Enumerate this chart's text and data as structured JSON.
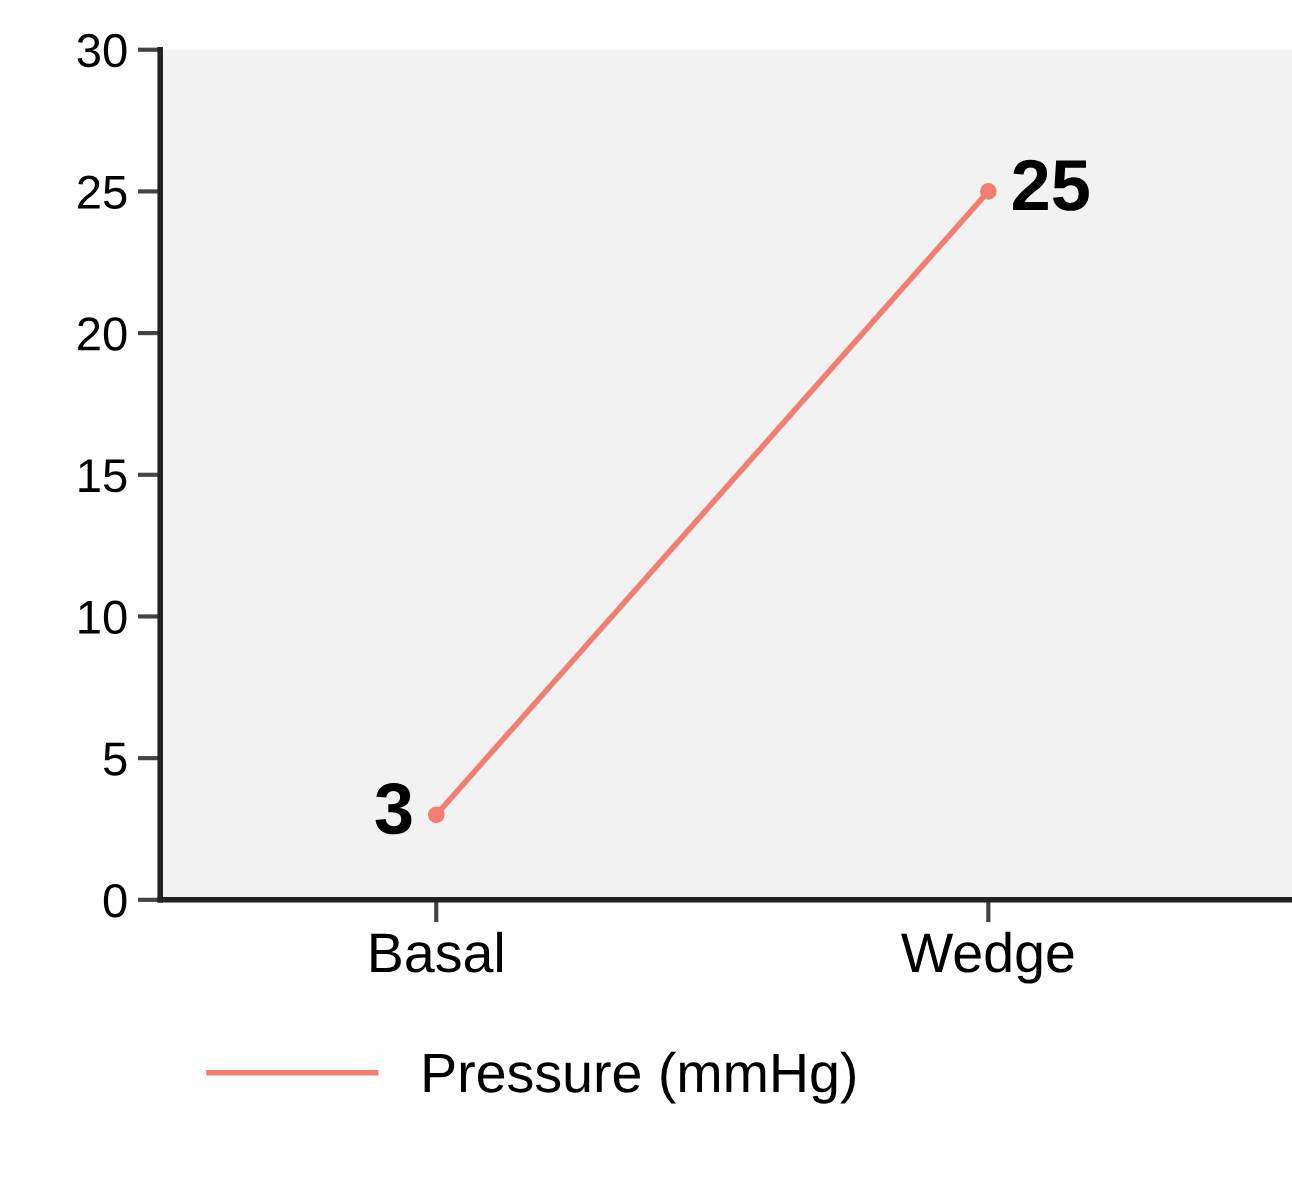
{
  "chart_data": {
    "type": "line",
    "categories": [
      "Basal",
      "Wedge"
    ],
    "series": [
      {
        "name": "Pressure (mmHg)",
        "color": "#f07f72",
        "values": [
          3,
          25
        ]
      }
    ],
    "ylim": [
      0,
      30
    ],
    "yticks": [
      0,
      5,
      10,
      15,
      20,
      25,
      30
    ],
    "grid": false,
    "legend": "bottom",
    "marker": "circle",
    "line_style": "solid",
    "data_labels": true
  }
}
